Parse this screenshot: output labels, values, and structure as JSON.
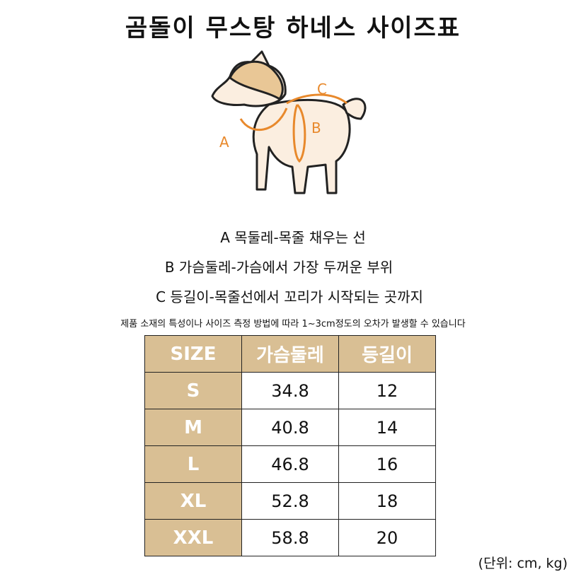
{
  "title": "곰돌이 무스탕 하네스 사이즈표",
  "diagram": {
    "labels": [
      "A",
      "B",
      "C"
    ],
    "accent_color": "#e8892c"
  },
  "descriptions": [
    "A 목둘레-목줄 채우는 선",
    "B 가슴둘레-가슴에서 가장 두꺼운 부위",
    "C 등길이-목줄선에서 꼬리가 시작되는 곳까지"
  ],
  "note": "제품 소재의 특성이나 사이즈 측정 방법에 따라 1~3cm정도의 오차가 발생할 수 있습니다",
  "table": {
    "header_color": "#d9bf94",
    "headers": [
      "SIZE",
      "가슴둘레",
      "등길이"
    ],
    "rows": [
      [
        "S",
        "34.8",
        "12"
      ],
      [
        "M",
        "40.8",
        "14"
      ],
      [
        "L",
        "46.8",
        "16"
      ],
      [
        "XL",
        "52.8",
        "18"
      ],
      [
        "XXL",
        "58.8",
        "20"
      ]
    ]
  },
  "unit": "(단위: cm, kg)"
}
